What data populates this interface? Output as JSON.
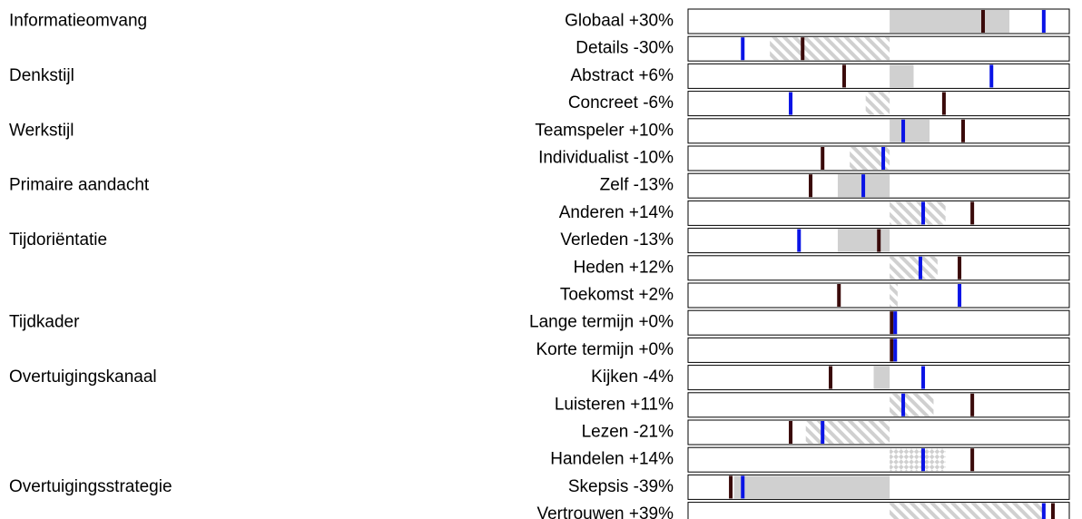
{
  "chart_data": {
    "type": "bar",
    "groups": [
      {
        "label": "Informatieomvang",
        "rows": 2
      },
      {
        "label": "Denkstijl",
        "rows": 2
      },
      {
        "label": "Werkstijl",
        "rows": 2
      },
      {
        "label": "Primaire aandacht",
        "rows": 2
      },
      {
        "label": "Tijdoriëntatie",
        "rows": 3
      },
      {
        "label": "Tijdkader",
        "rows": 2
      },
      {
        "label": "Overtuigingskanaal",
        "rows": 4
      },
      {
        "label": "Overtuigingsstrategie",
        "rows": 2
      }
    ],
    "categories": [
      "Globaal",
      "Details",
      "Abstract",
      "Concreet",
      "Teamspeler",
      "Individualist",
      "Zelf",
      "Anderen",
      "Verleden",
      "Heden",
      "Toekomst",
      "Lange termijn",
      "Korte termijn",
      "Kijken",
      "Luisteren",
      "Lezen",
      "Handelen",
      "Skepsis",
      "Vertrouwen"
    ],
    "values": [
      30,
      -30,
      6,
      -6,
      10,
      -10,
      -13,
      14,
      -13,
      12,
      2,
      0,
      0,
      -4,
      11,
      -21,
      14,
      -39,
      39
    ],
    "value_labels": [
      "+30%",
      "-30%",
      "+6%",
      "-6%",
      "+10%",
      "-10%",
      "-13%",
      "+14%",
      "-13%",
      "+12%",
      "+2%",
      "+0%",
      "+0%",
      "-4%",
      "+11%",
      "-21%",
      "+14%",
      "-39%",
      "+39%"
    ],
    "fills": [
      "solid",
      "hatch",
      "solid",
      "hatch",
      "solid",
      "hatch",
      "solid",
      "hatch",
      "solid",
      "hatch",
      "hatch",
      "solid",
      "solid",
      "solid",
      "hatch",
      "hatch",
      "cross",
      "solid",
      "hatch"
    ],
    "color": "#d0d0d0",
    "series": [
      {
        "color": "#3a0a0a",
        "values": [
          23.4,
          -21.8,
          -11.4,
          13.6,
          18.4,
          -16.8,
          -19.8,
          20.7,
          -2.7,
          17.5,
          -12.7,
          0.5,
          0.5,
          -14.8,
          20.7,
          -24.8,
          20.7,
          -39.8,
          40.9
        ]
      },
      {
        "color": "#0a14e6",
        "values": [
          38.6,
          -36.8,
          25.5,
          -24.8,
          3.4,
          -1.6,
          -6.6,
          8.4,
          -22.7,
          7.7,
          17.5,
          1.4,
          1.4,
          8.4,
          3.4,
          -16.8,
          8.4,
          -36.8,
          38.6
        ]
      }
    ],
    "xlim": [
      -50.5,
      45
    ]
  }
}
